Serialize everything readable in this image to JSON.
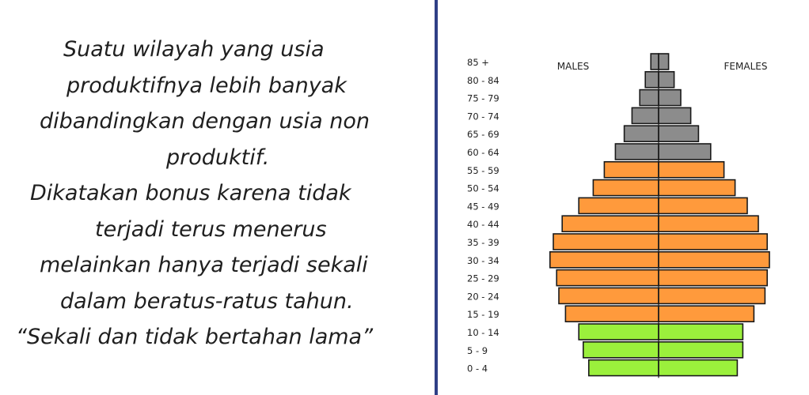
{
  "text": {
    "lines": [
      {
        "text": "Suatu wilayah yang usia",
        "indent": 60
      },
      {
        "text": "produktifnya lebih banyak",
        "indent": 64
      },
      {
        "text": "dibandingkan dengan usia non",
        "indent": 30
      },
      {
        "text": "produktif.",
        "indent": 190
      },
      {
        "text": "Dikatakan bonus karena tidak",
        "indent": 18
      },
      {
        "text": "terjadi terus menerus",
        "indent": 100
      },
      {
        "text": "melainkan hanya terjadi sekali",
        "indent": 30
      },
      {
        "text": "dalam beratus-ratus tahun.",
        "indent": 56
      },
      {
        "text": "“Sekali dan tidak bertahan lama”",
        "indent": 0
      }
    ]
  },
  "chart_data": {
    "type": "bar",
    "orientation": "horizontal-population-pyramid",
    "labels": {
      "left": "MALES",
      "right": "FEMALES"
    },
    "categories": [
      "85 +",
      "80 - 84",
      "75 - 79",
      "70 - 74",
      "65 - 69",
      "60 - 64",
      "55 - 59",
      "50 - 54",
      "45 - 49",
      "40 - 44",
      "35 - 39",
      "30 - 34",
      "25 - 29",
      "20 - 24",
      "15 - 19",
      "10 - 14",
      "5 - 9",
      "0 - 4"
    ],
    "series": [
      {
        "side": "males",
        "values": [
          7,
          12,
          17,
          24,
          31,
          39,
          49,
          59,
          72,
          87,
          95,
          98,
          92,
          90,
          84,
          72,
          68,
          63
        ]
      },
      {
        "side": "females",
        "values": [
          9,
          14,
          20,
          29,
          36,
          47,
          59,
          69,
          80,
          90,
          98,
          100,
          98,
          96,
          86,
          76,
          76,
          71
        ]
      }
    ],
    "group_colors": {
      "elderly": "#8c8c8c",
      "productive": "#ff9a3c",
      "young": "#9bf03c"
    },
    "groups": [
      "elderly",
      "elderly",
      "elderly",
      "elderly",
      "elderly",
      "elderly",
      "productive",
      "productive",
      "productive",
      "productive",
      "productive",
      "productive",
      "productive",
      "productive",
      "productive",
      "young",
      "young",
      "young"
    ]
  }
}
